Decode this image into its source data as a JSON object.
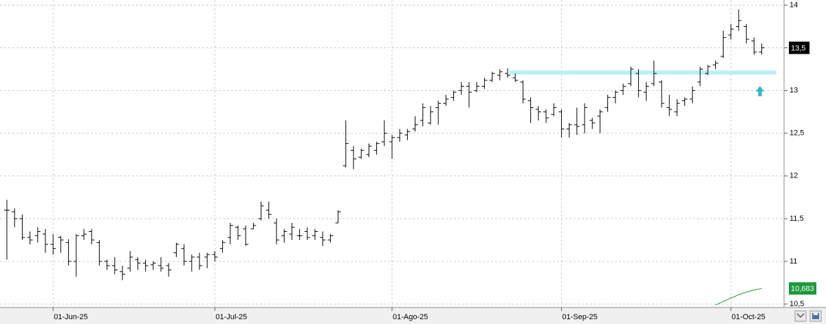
{
  "chart_data": {
    "type": "ohlc",
    "categories": [
      null,
      null,
      null,
      null,
      null,
      null,
      "01-Jun-25",
      null,
      null,
      null,
      null,
      null,
      null,
      null,
      null,
      null,
      null,
      null,
      null,
      null,
      null,
      null,
      null,
      null,
      null,
      null,
      null,
      "01-Jul-25",
      null,
      null,
      null,
      null,
      null,
      null,
      null,
      null,
      null,
      null,
      null,
      null,
      null,
      null,
      null,
      null,
      null,
      null,
      null,
      null,
      null,
      null,
      "01-Ago-25",
      null,
      null,
      null,
      null,
      null,
      null,
      null,
      null,
      null,
      null,
      null,
      null,
      null,
      null,
      null,
      null,
      null,
      null,
      null,
      null,
      null,
      "01-Sep-25",
      null,
      null,
      null,
      null,
      null,
      null,
      null,
      null,
      null,
      null,
      null,
      null,
      null,
      null,
      null,
      null,
      null,
      null,
      null,
      null,
      null,
      "01-Oct-25",
      null,
      null,
      null,
      null
    ],
    "open": [
      11.6,
      11.58,
      11.5,
      11.28,
      11.3,
      11.32,
      11.2,
      11.28,
      11.22,
      11.0,
      11.3,
      11.35,
      11.22,
      11.0,
      10.95,
      10.88,
      10.92,
      11.02,
      10.98,
      10.96,
      10.95,
      10.95,
      11.1,
      11.15,
      11.0,
      11.05,
      11.05,
      11.08,
      11.15,
      11.28,
      11.4,
      11.38,
      11.38,
      11.5,
      11.6,
      11.45,
      11.3,
      11.32,
      11.3,
      11.35,
      11.3,
      11.28,
      11.25,
      11.45,
      12.12,
      12.3,
      12.22,
      12.25,
      12.3,
      12.4,
      12.4,
      12.45,
      12.48,
      12.55,
      12.65,
      12.62,
      12.8,
      12.85,
      12.92,
      13.0,
      13.05,
      13.0,
      13.05,
      13.12,
      13.18,
      13.2,
      13.15,
      13.1,
      12.88,
      12.78,
      12.75,
      12.72,
      12.75,
      12.55,
      12.6,
      12.6,
      12.65,
      12.7,
      12.8,
      12.92,
      13.0,
      13.08,
      13.2,
      12.98,
      13.08,
      13.1,
      12.8,
      12.75,
      12.88,
      12.9,
      13.1,
      13.2,
      13.3,
      13.4,
      13.65,
      13.75,
      13.75,
      13.58,
      13.45
    ],
    "high": [
      11.72,
      11.62,
      11.55,
      11.35,
      11.4,
      11.38,
      11.32,
      11.3,
      11.26,
      11.32,
      11.38,
      11.38,
      11.25,
      11.02,
      11.05,
      10.95,
      11.12,
      11.05,
      11.02,
      11.0,
      11.05,
      10.98,
      11.22,
      11.2,
      11.08,
      11.1,
      11.1,
      11.12,
      11.25,
      11.45,
      11.42,
      11.42,
      11.45,
      11.7,
      11.7,
      11.5,
      11.38,
      11.45,
      11.38,
      11.4,
      11.38,
      11.35,
      11.32,
      11.6,
      12.65,
      12.35,
      12.32,
      12.38,
      12.4,
      12.65,
      12.48,
      12.55,
      12.55,
      12.7,
      12.85,
      12.82,
      12.88,
      12.95,
      13.0,
      13.1,
      13.1,
      13.1,
      13.15,
      13.22,
      13.25,
      13.26,
      13.2,
      13.12,
      12.92,
      12.82,
      12.78,
      12.85,
      12.78,
      12.62,
      12.8,
      12.85,
      12.68,
      12.78,
      12.95,
      13.0,
      13.08,
      13.28,
      13.25,
      13.1,
      13.35,
      13.12,
      12.95,
      12.9,
      12.92,
      13.05,
      13.28,
      13.3,
      13.35,
      13.7,
      13.78,
      13.95,
      13.78,
      13.62,
      13.55
    ],
    "low": [
      11.02,
      11.4,
      11.25,
      11.2,
      11.22,
      11.1,
      11.08,
      11.1,
      10.95,
      10.82,
      11.25,
      11.2,
      10.95,
      10.9,
      10.85,
      10.78,
      10.88,
      10.9,
      10.88,
      10.9,
      10.88,
      10.82,
      11.05,
      10.95,
      10.88,
      10.9,
      10.92,
      11.0,
      11.1,
      11.2,
      11.25,
      11.18,
      11.38,
      11.48,
      11.5,
      11.2,
      11.22,
      11.25,
      11.25,
      11.25,
      11.25,
      11.18,
      11.22,
      11.45,
      12.1,
      12.08,
      12.2,
      12.22,
      12.25,
      12.35,
      12.2,
      12.4,
      12.42,
      12.52,
      12.58,
      12.6,
      12.6,
      12.82,
      12.88,
      12.95,
      12.8,
      12.98,
      13.02,
      13.1,
      13.12,
      13.15,
      13.1,
      12.85,
      12.62,
      12.65,
      12.62,
      12.7,
      12.45,
      12.45,
      12.48,
      12.5,
      12.55,
      12.5,
      12.75,
      12.85,
      12.95,
      13.05,
      12.92,
      12.88,
      13.05,
      12.8,
      12.7,
      12.7,
      12.82,
      12.85,
      13.05,
      13.18,
      13.25,
      13.38,
      13.6,
      13.7,
      13.55,
      13.42,
      13.42
    ],
    "close": [
      11.6,
      11.5,
      11.28,
      11.25,
      11.35,
      11.2,
      11.15,
      11.25,
      11.0,
      11.3,
      11.32,
      11.25,
      11.0,
      10.95,
      10.9,
      10.85,
      11.05,
      10.98,
      10.95,
      10.98,
      10.92,
      10.9,
      11.2,
      11.0,
      11.05,
      10.95,
      11.08,
      11.05,
      11.22,
      11.42,
      11.3,
      11.2,
      11.42,
      11.65,
      11.55,
      11.25,
      11.35,
      11.4,
      11.3,
      11.28,
      11.35,
      11.25,
      11.3,
      11.58,
      12.38,
      12.2,
      12.3,
      12.35,
      12.38,
      12.5,
      12.45,
      12.5,
      12.52,
      12.6,
      12.8,
      12.75,
      12.85,
      12.9,
      12.98,
      13.05,
      12.98,
      13.05,
      13.12,
      13.2,
      13.22,
      13.18,
      13.12,
      12.9,
      12.8,
      12.75,
      12.68,
      12.8,
      12.55,
      12.6,
      12.58,
      12.8,
      12.62,
      12.75,
      12.92,
      12.98,
      13.05,
      13.25,
      13.0,
      13.05,
      13.2,
      12.85,
      12.78,
      12.85,
      12.9,
      13.0,
      13.25,
      13.28,
      13.32,
      13.62,
      13.72,
      13.82,
      13.6,
      13.45,
      13.5
    ],
    "color": "#000000",
    "last_price": {
      "value": 13.5,
      "label": "13,5"
    },
    "level": {
      "value": 13.21,
      "start": 66,
      "color": "#b8f0f8"
    },
    "ma": {
      "color": "#1a9a3a",
      "values": [
        null,
        null,
        null,
        null,
        null,
        null,
        null,
        null,
        null,
        null,
        null,
        null,
        null,
        null,
        null,
        null,
        null,
        null,
        null,
        null,
        null,
        null,
        null,
        null,
        null,
        null,
        null,
        null,
        null,
        null,
        null,
        null,
        null,
        null,
        null,
        null,
        null,
        null,
        null,
        null,
        null,
        null,
        null,
        null,
        null,
        null,
        null,
        null,
        null,
        null,
        null,
        null,
        null,
        null,
        null,
        null,
        null,
        null,
        null,
        null,
        null,
        null,
        null,
        null,
        null,
        null,
        null,
        null,
        null,
        null,
        null,
        null,
        null,
        null,
        null,
        null,
        null,
        null,
        null,
        null,
        null,
        null,
        null,
        null,
        null,
        null,
        null,
        null,
        null,
        null,
        null,
        null,
        10.49,
        10.53,
        10.57,
        10.61,
        10.64,
        10.665,
        10.683
      ],
      "value_label": "10,683"
    },
    "ylim": [
      10.46,
      14.06
    ],
    "yticks": [
      {
        "value": 10.5,
        "label": "10,5"
      },
      11,
      {
        "value": 11.5,
        "label": "11,5"
      },
      12,
      {
        "value": 12.5,
        "label": "12,5"
      },
      13,
      {
        "value": 13.5,
        "label": "13,5"
      },
      14
    ],
    "grid": true
  }
}
